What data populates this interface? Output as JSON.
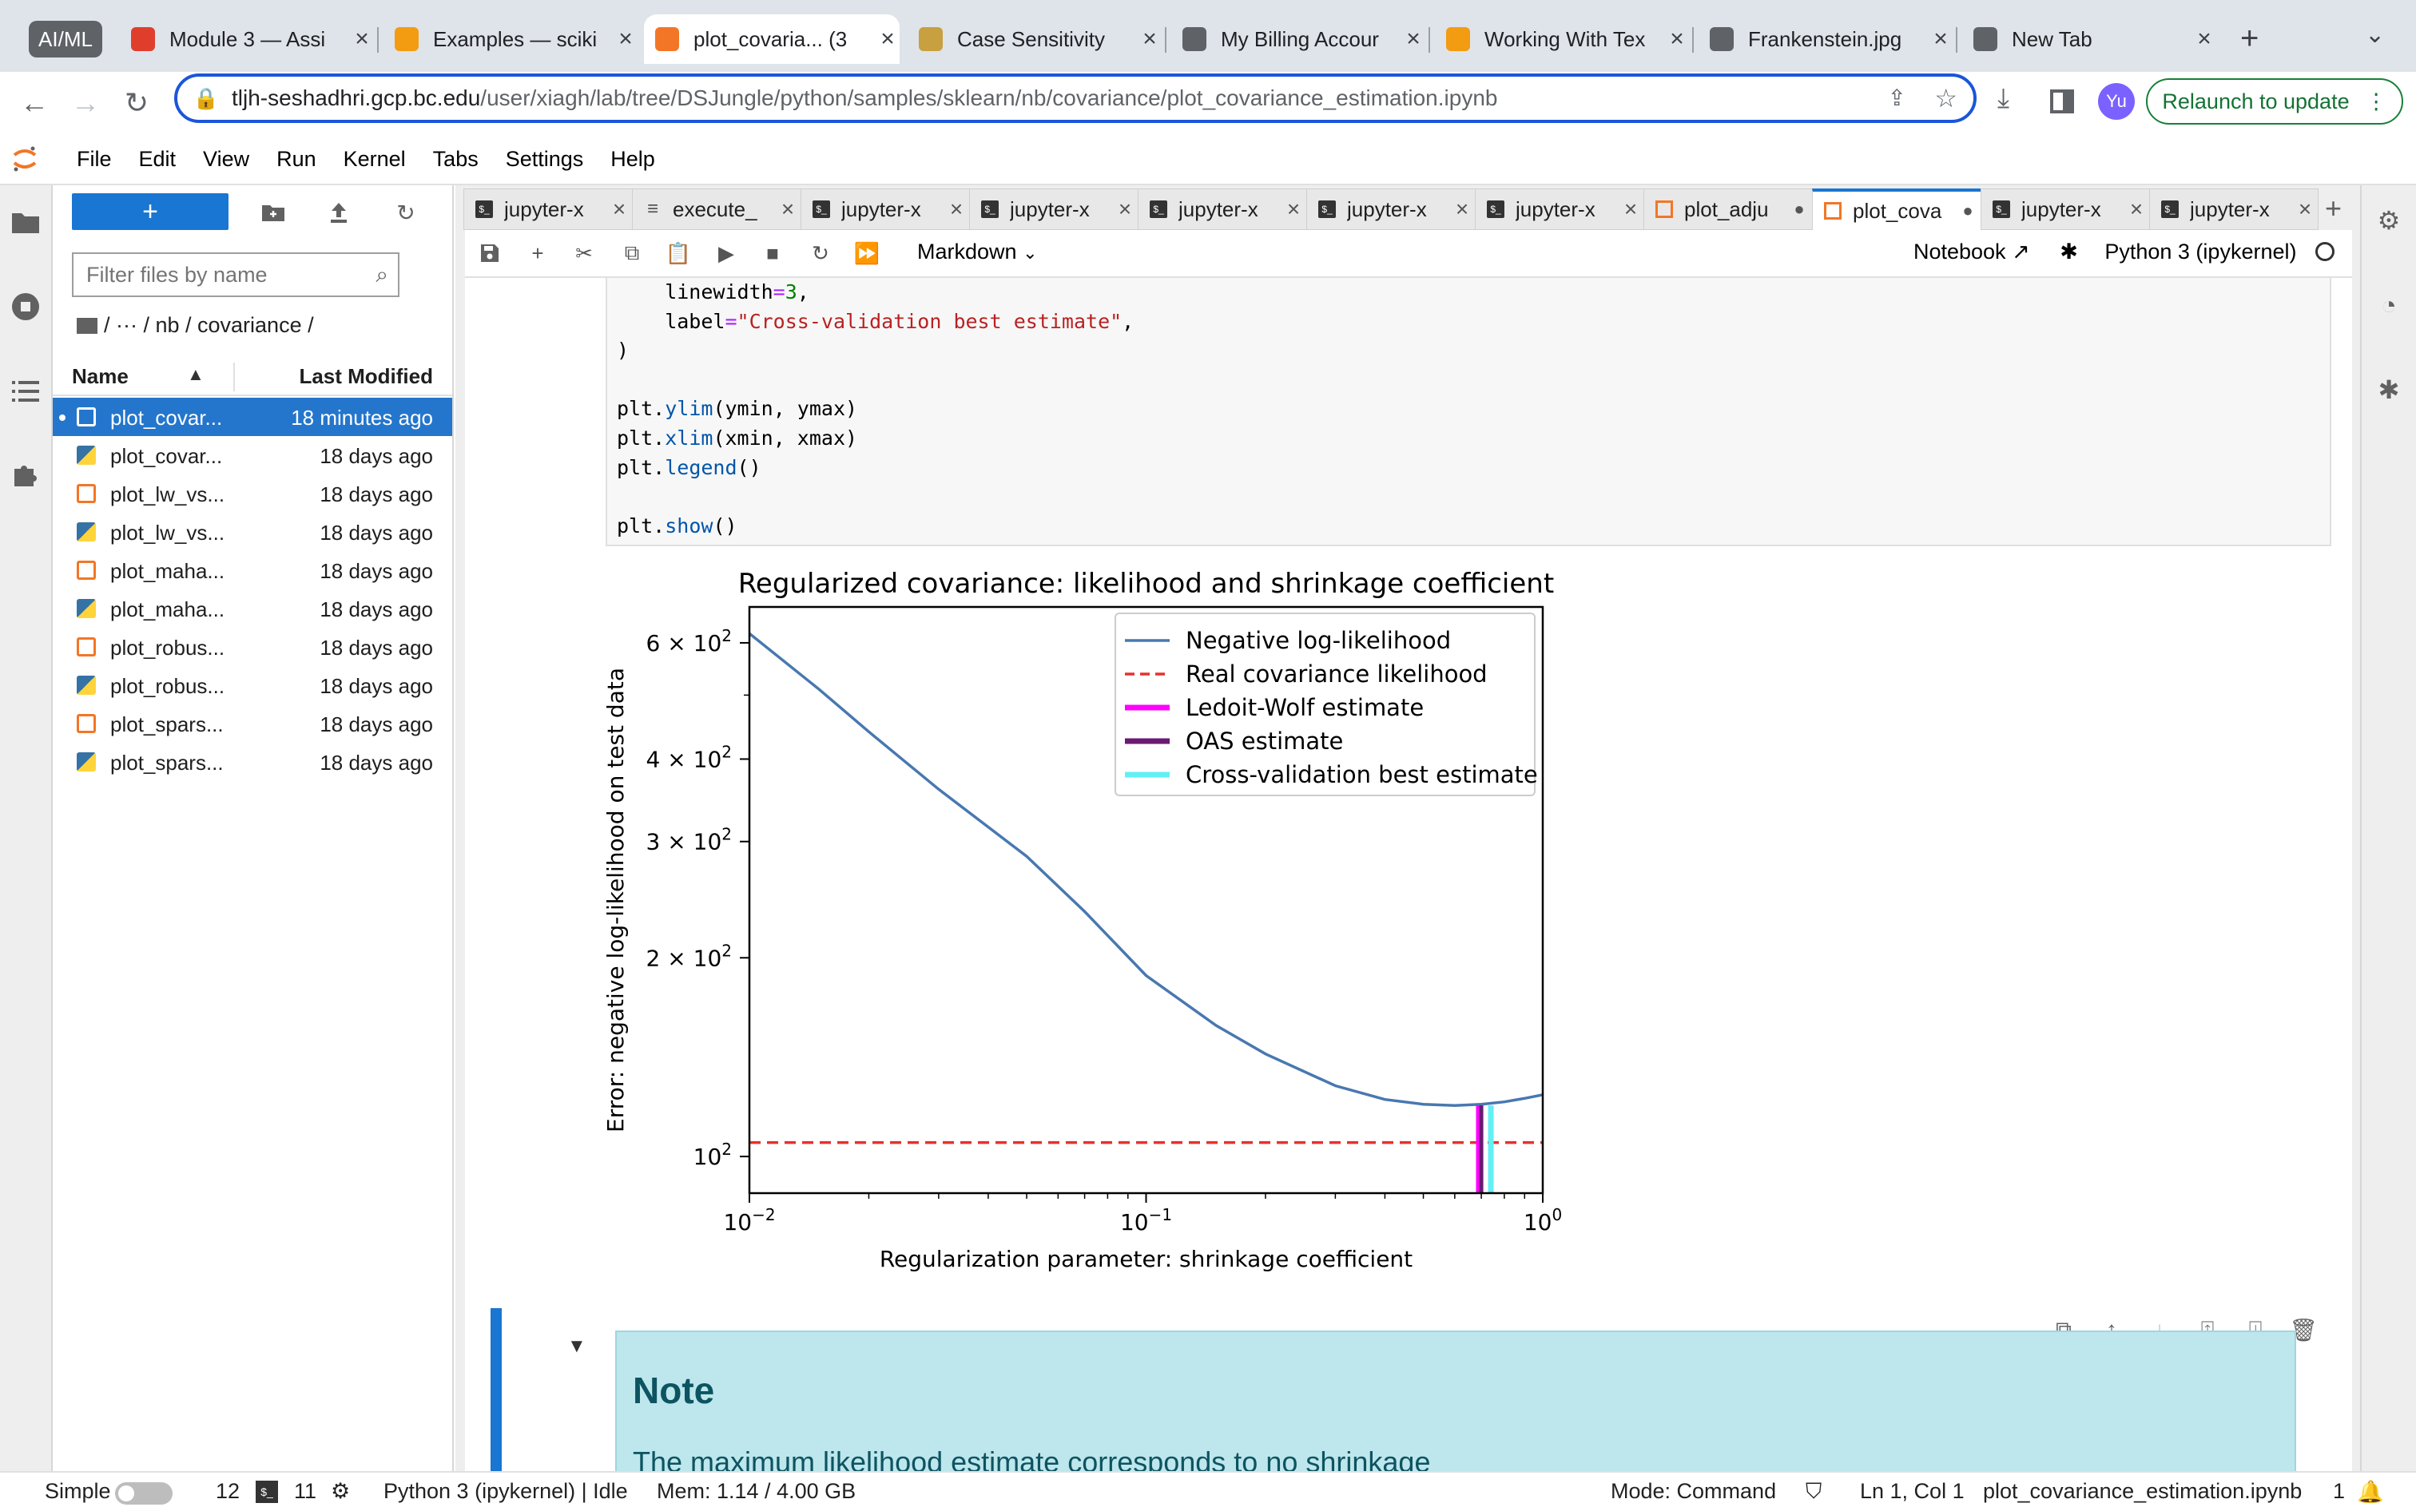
{
  "browser": {
    "group_label": "AI/ML",
    "tabs": [
      {
        "title": "Module 3 — Assi",
        "icon": "canvas-icon",
        "color": "#e03e2d"
      },
      {
        "title": "Examples — sciki",
        "icon": "bar-chart-icon",
        "color": "#f39c12"
      },
      {
        "title": "plot_covaria... (3",
        "icon": "jupyter-icon",
        "color": "#f37626"
      },
      {
        "title": "Case Sensitivity",
        "icon": "box-icon",
        "color": "#c8a040"
      },
      {
        "title": "My Billing Accour",
        "icon": "gear-icon",
        "color": "#5f6368"
      },
      {
        "title": "Working With Tex",
        "icon": "bar-chart-icon",
        "color": "#f39c12"
      },
      {
        "title": "Frankenstein.jpg",
        "icon": "globe-icon",
        "color": "#5f6368"
      },
      {
        "title": "New Tab",
        "icon": "chrome-icon",
        "color": "#5f6368"
      }
    ],
    "url_host": "tljh-seshadhri.gcp.bc.edu",
    "url_path": "/user/xiagh/lab/tree/DSJungle/python/samples/sklearn/nb/covariance/plot_covariance_estimation.ipynb",
    "profile_initials": "Yu",
    "relaunch_label": "Relaunch to update"
  },
  "menubar": [
    "File",
    "Edit",
    "View",
    "Run",
    "Kernel",
    "Tabs",
    "Settings",
    "Help"
  ],
  "filebrowser": {
    "new_label": "+",
    "filter_placeholder": "Filter files by name",
    "breadcrumb": "/   ···   / nb / covariance /",
    "col_name": "Name",
    "col_modified": "Last Modified",
    "files": [
      {
        "name": "plot_covar...",
        "modified": "18 minutes ago",
        "type": "notebook",
        "selected": true
      },
      {
        "name": "plot_covar...",
        "modified": "18 days ago",
        "type": "python"
      },
      {
        "name": "plot_lw_vs...",
        "modified": "18 days ago",
        "type": "notebook"
      },
      {
        "name": "plot_lw_vs...",
        "modified": "18 days ago",
        "type": "python"
      },
      {
        "name": "plot_maha...",
        "modified": "18 days ago",
        "type": "notebook"
      },
      {
        "name": "plot_maha...",
        "modified": "18 days ago",
        "type": "python"
      },
      {
        "name": "plot_robus...",
        "modified": "18 days ago",
        "type": "notebook"
      },
      {
        "name": "plot_robus...",
        "modified": "18 days ago",
        "type": "python"
      },
      {
        "name": "plot_spars...",
        "modified": "18 days ago",
        "type": "notebook"
      },
      {
        "name": "plot_spars...",
        "modified": "18 days ago",
        "type": "python"
      }
    ]
  },
  "doc_tabs": [
    {
      "label": "jupyter-x",
      "kind": "terminal",
      "closable": true
    },
    {
      "label": "execute_",
      "kind": "text",
      "closable": true
    },
    {
      "label": "jupyter-x",
      "kind": "terminal",
      "closable": true
    },
    {
      "label": "jupyter-x",
      "kind": "terminal",
      "closable": true
    },
    {
      "label": "jupyter-x",
      "kind": "terminal",
      "closable": true
    },
    {
      "label": "jupyter-x",
      "kind": "terminal",
      "closable": true
    },
    {
      "label": "jupyter-x",
      "kind": "terminal",
      "closable": true
    },
    {
      "label": "plot_adju",
      "kind": "notebook",
      "closable": false
    },
    {
      "label": "plot_cova",
      "kind": "notebook",
      "closable": false,
      "active": true
    },
    {
      "label": "jupyter-x",
      "kind": "terminal",
      "closable": true
    },
    {
      "label": "jupyter-x",
      "kind": "terminal",
      "closable": true
    }
  ],
  "nb_toolbar": {
    "cell_type": "Markdown",
    "notebook_label": "Notebook",
    "kernel_label": "Python 3 (ipykernel)"
  },
  "code_lines": [
    "    linewidth=3,",
    "    label=\"Cross-validation best estimate\",",
    ")",
    "",
    "plt.ylim(ymin, ymax)",
    "plt.xlim(xmin, xmax)",
    "plt.legend()",
    "",
    "plt.show()"
  ],
  "chart_data": {
    "type": "line",
    "title": "Regularized covariance: likelihood and shrinkage coefficient",
    "xlabel": "Regularization parameter: shrinkage coefficient",
    "ylabel": "Error: negative log-likelihood on test data",
    "xscale": "log",
    "yscale": "log",
    "xlim": [
      0.01,
      1.0
    ],
    "ylim": [
      88,
      680
    ],
    "x_ticks": [
      {
        "value": 0.01,
        "base": "10",
        "exp": "−2"
      },
      {
        "value": 0.1,
        "base": "10",
        "exp": "−1"
      },
      {
        "value": 1.0,
        "base": "10",
        "exp": "0"
      }
    ],
    "y_ticks": [
      {
        "value": 100,
        "base": "10",
        "exp": "2",
        "mult": ""
      },
      {
        "value": 200,
        "base": "10",
        "exp": "2",
        "mult": "2 × "
      },
      {
        "value": 300,
        "base": "10",
        "exp": "2",
        "mult": "3 × "
      },
      {
        "value": 400,
        "base": "10",
        "exp": "2",
        "mult": "4 × "
      },
      {
        "value": 600,
        "base": "10",
        "exp": "2",
        "mult": "6 × "
      }
    ],
    "series": [
      {
        "name": "Negative log-likelihood",
        "color": "#4878b0",
        "style": "solid",
        "x": [
          0.01,
          0.015,
          0.02,
          0.03,
          0.05,
          0.07,
          0.1,
          0.15,
          0.2,
          0.3,
          0.4,
          0.5,
          0.6,
          0.7,
          0.8,
          0.9,
          1.0
        ],
        "y": [
          620,
          510,
          440,
          360,
          285,
          235,
          188,
          158,
          143,
          128,
          122,
          120,
          119.5,
          120,
          121,
          122.5,
          124
        ]
      },
      {
        "name": "Real covariance likelihood",
        "color": "#e8302e",
        "style": "dashed",
        "y_value": 105
      }
    ],
    "vlines": [
      {
        "name": "Ledoit-Wolf estimate",
        "color": "#ff00ff",
        "x": 0.69,
        "ymax": 119.5
      },
      {
        "name": "OAS estimate",
        "color": "#6a1a72",
        "x": 0.7,
        "ymax": 119.5
      },
      {
        "name": "Cross-validation best estimate",
        "color": "#62f0f5",
        "x": 0.74,
        "ymax": 119.5
      }
    ],
    "legend_position": "upper right"
  },
  "markdown": {
    "note_title": "Note",
    "note_text": "The maximum likelihood estimate corresponds to no shrinkage"
  },
  "statusbar": {
    "mode_simple": "Simple",
    "terminals": "12",
    "kernels": "11",
    "kernel_status": "Python 3 (ipykernel) | Idle",
    "memory": "Mem: 1.14 / 4.00 GB",
    "mode": "Mode: Command",
    "cursor": "Ln 1, Col 1",
    "filename": "plot_covariance_estimation.ipynb",
    "notifications": "1"
  }
}
